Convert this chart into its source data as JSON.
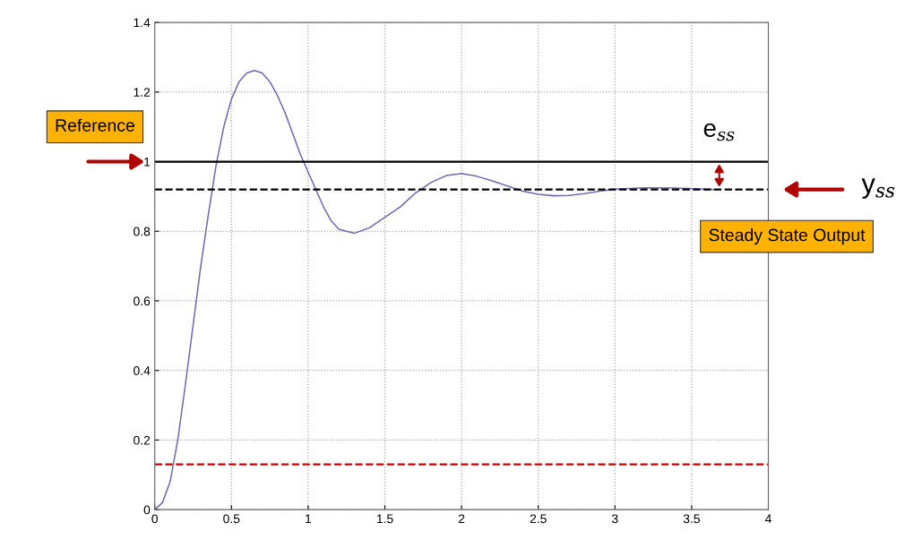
{
  "chart_data": {
    "type": "line",
    "x": [
      0,
      0.05,
      0.1,
      0.15,
      0.2,
      0.25,
      0.3,
      0.35,
      0.4,
      0.45,
      0.5,
      0.55,
      0.6,
      0.65,
      0.7,
      0.75,
      0.8,
      0.85,
      0.9,
      0.95,
      1.0,
      1.05,
      1.1,
      1.15,
      1.2,
      1.3,
      1.4,
      1.5,
      1.6,
      1.7,
      1.8,
      1.9,
      2.0,
      2.1,
      2.2,
      2.3,
      2.4,
      2.5,
      2.6,
      2.7,
      2.8,
      2.9,
      3.0,
      3.2,
      3.4,
      3.65
    ],
    "series": [
      {
        "color": "#6a6ab8",
        "values": [
          0,
          0.02,
          0.08,
          0.2,
          0.36,
          0.53,
          0.7,
          0.85,
          0.99,
          1.1,
          1.18,
          1.23,
          1.255,
          1.262,
          1.255,
          1.23,
          1.19,
          1.14,
          1.08,
          1.02,
          0.97,
          0.92,
          0.87,
          0.83,
          0.806,
          0.794,
          0.81,
          0.84,
          0.87,
          0.91,
          0.94,
          0.96,
          0.966,
          0.958,
          0.945,
          0.93,
          0.915,
          0.906,
          0.902,
          0.903,
          0.908,
          0.915,
          0.921,
          0.925,
          0.924,
          0.92
        ]
      }
    ],
    "xlim": [
      0,
      4
    ],
    "ylim": [
      0,
      1.4
    ],
    "xticks": [
      0,
      0.5,
      1,
      1.5,
      2,
      2.5,
      3,
      3.5,
      4
    ],
    "yticks": [
      0,
      0.2,
      0.4,
      0.6,
      0.8,
      1,
      1.2,
      1.4
    ],
    "grid": true,
    "line_style": "solid",
    "marker": "none",
    "ref_lines": [
      {
        "axis": "y",
        "value": 1,
        "label": "Reference",
        "color": "#000000",
        "line_style": "solid"
      },
      {
        "axis": "y",
        "value": 0.92,
        "label": "Steady State Output",
        "color": "#000000",
        "line_style": "dashed"
      },
      {
        "axis": "y",
        "value": 0.13,
        "color": "#cc0000",
        "line_style": "dashed"
      }
    ],
    "annotations": [
      "e$_{ss}$",
      "y$_{ss}$"
    ]
  }
}
